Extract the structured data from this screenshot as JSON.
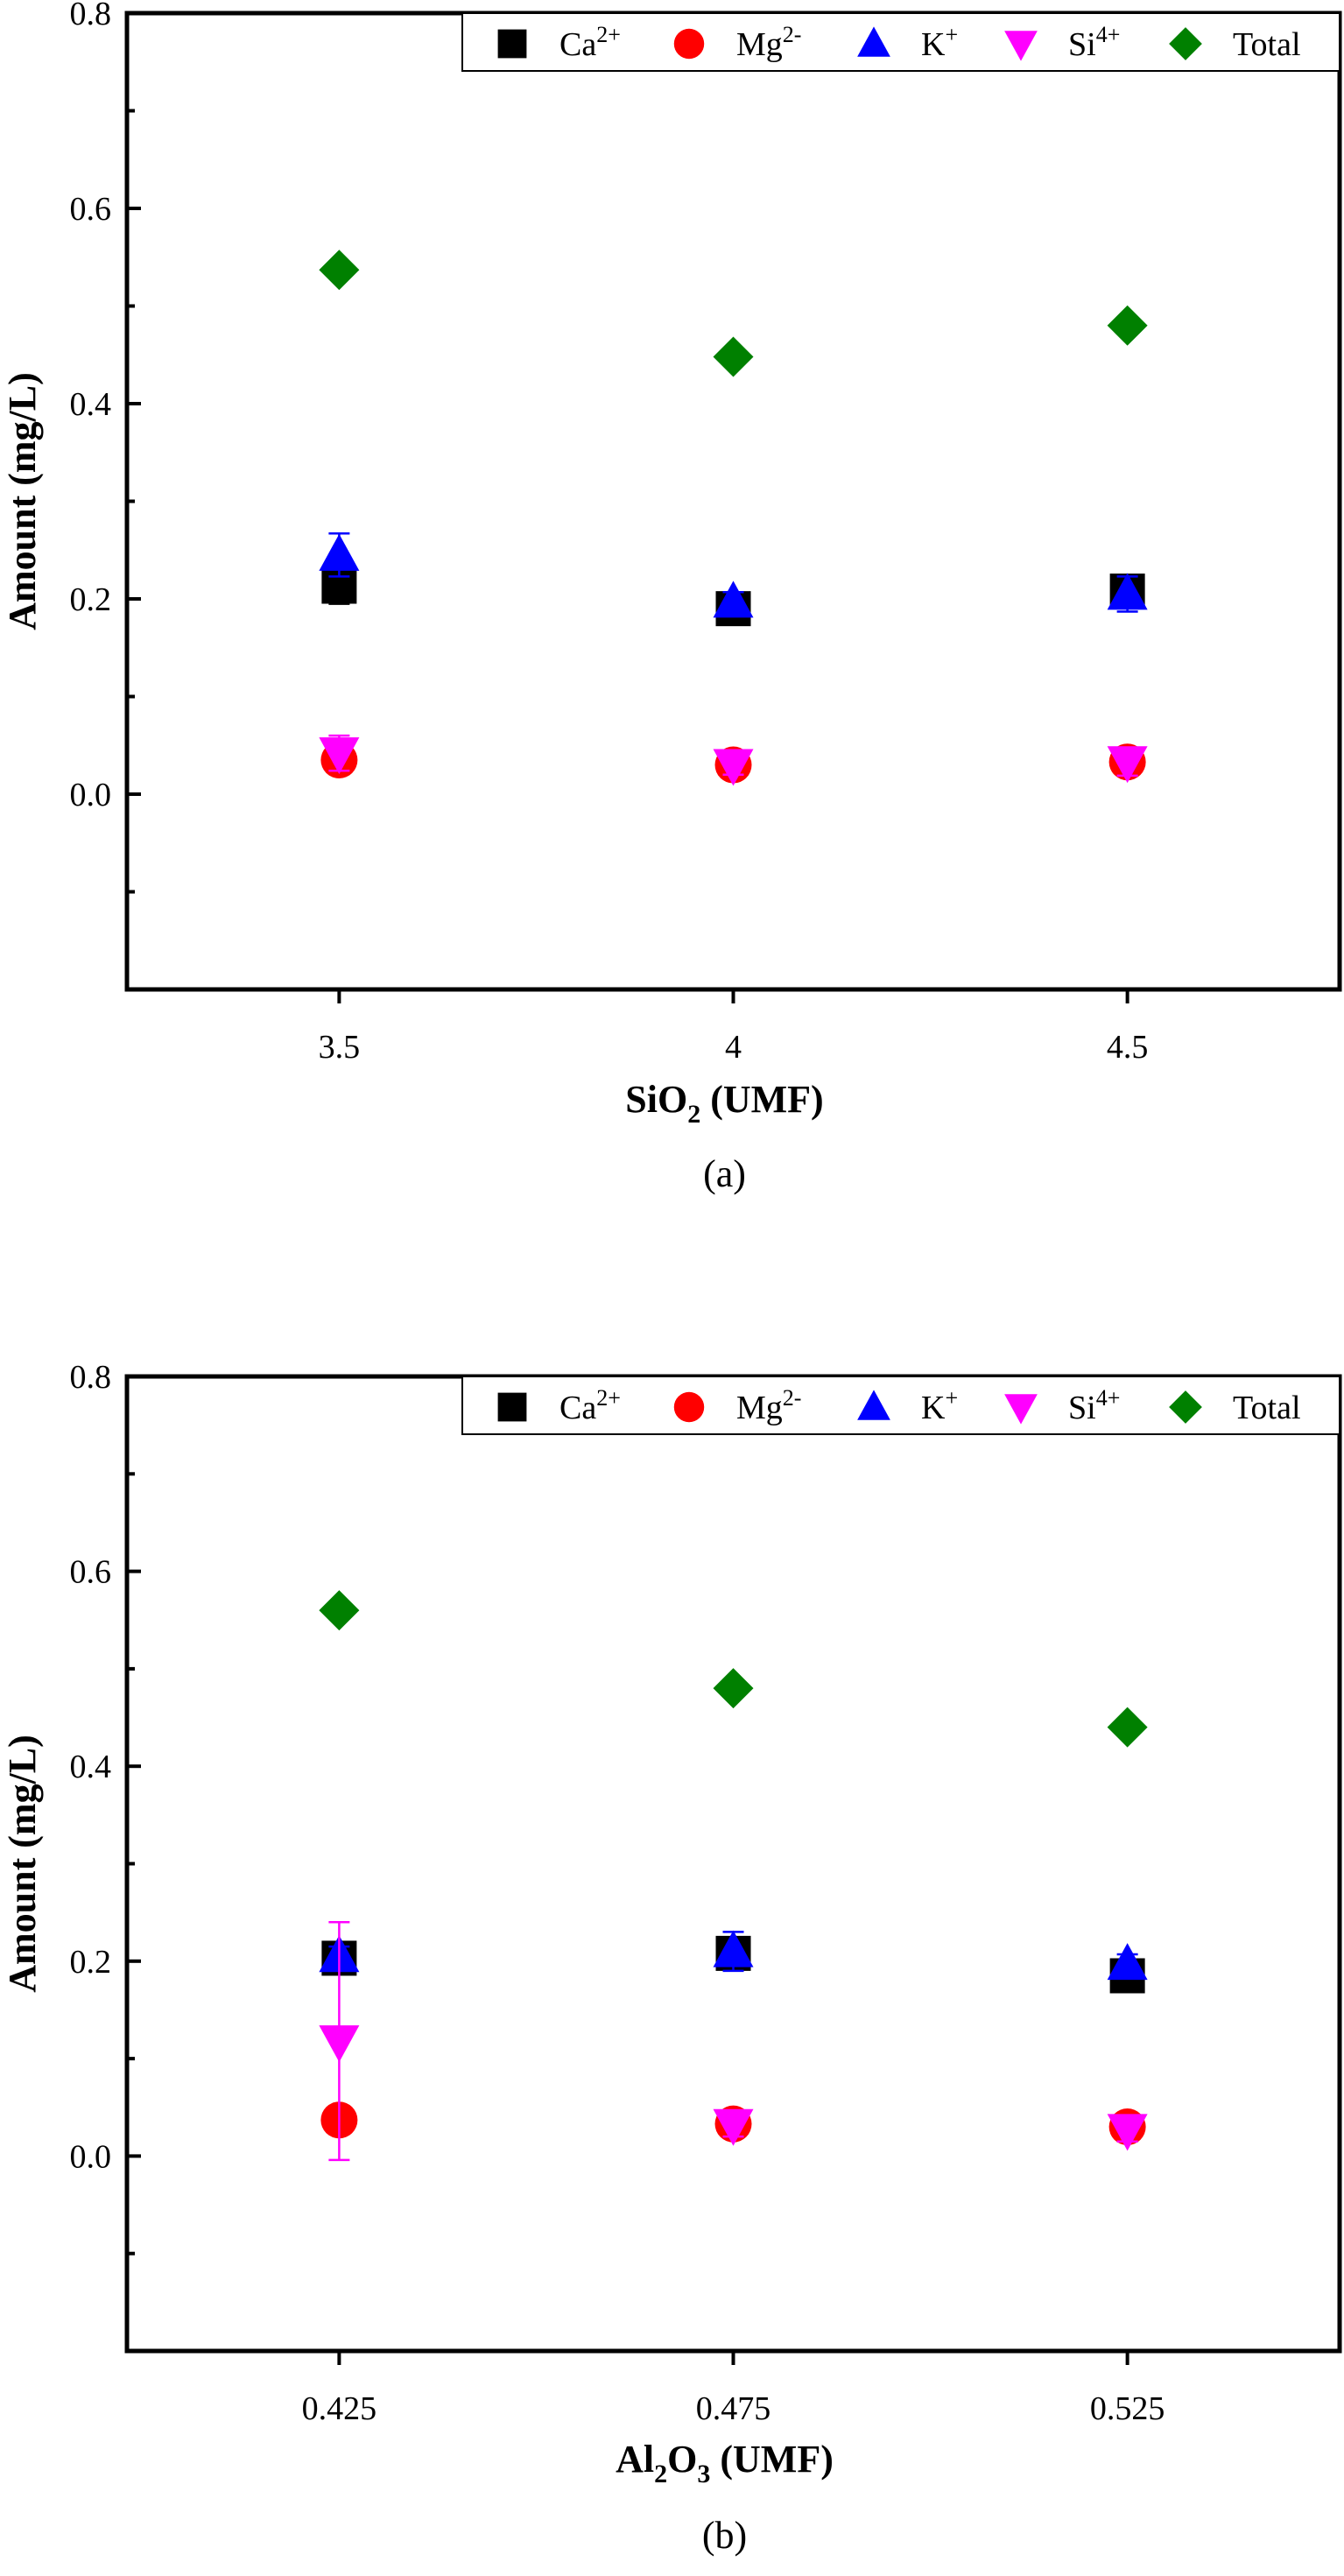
{
  "chart_data": [
    {
      "type": "scatter",
      "panel_label": "(a)",
      "xlabel_main": "SiO",
      "xlabel_sub": "2",
      "xlabel_rest": " (UMF)",
      "ylabel": "Amount (mg/L)",
      "categories": [
        "3.5",
        "4",
        "4.5"
      ],
      "ylim": [
        -0.2,
        0.8
      ],
      "yticks": [
        "0.0",
        "0.2",
        "0.4",
        "0.6",
        "0.8"
      ],
      "ytick_values": [
        0.0,
        0.2,
        0.4,
        0.6,
        0.8
      ],
      "grid": false,
      "legend_position": "top-right",
      "series": [
        {
          "name": "Ca",
          "sup": "2+",
          "marker": "square",
          "color": "#000000",
          "values": [
            0.213,
            0.19,
            0.208
          ],
          "errors": [
            0.018,
            0.008,
            0.012
          ]
        },
        {
          "name": "Mg",
          "sup": "2-",
          "marker": "circle",
          "color": "#ff0000",
          "values": [
            0.035,
            0.03,
            0.033
          ],
          "errors": [
            0.006,
            0.005,
            0.006
          ]
        },
        {
          "name": "K",
          "sup": "+",
          "marker": "triangle-up",
          "color": "#0000ff",
          "values": [
            0.245,
            0.197,
            0.205
          ],
          "errors": [
            0.022,
            0.01,
            0.018
          ]
        },
        {
          "name": "Si",
          "sup": "4+",
          "marker": "triangle-down",
          "color": "#ff00ff",
          "values": [
            0.042,
            0.03,
            0.033
          ],
          "errors": [
            0.018,
            0.01,
            0.014
          ]
        },
        {
          "name": "Total",
          "sup": "",
          "marker": "diamond",
          "color": "#008000",
          "values": [
            0.537,
            0.448,
            0.48
          ],
          "errors": [
            0,
            0,
            0
          ]
        }
      ]
    },
    {
      "type": "scatter",
      "panel_label": "(b)",
      "xlabel_main": "Al",
      "xlabel_sub": "2",
      "xlabel_main2": "O",
      "xlabel_sub2": "3",
      "xlabel_rest": " (UMF)",
      "ylabel": "Amount (mg/L)",
      "categories": [
        "0.425",
        "0.475",
        "0.525"
      ],
      "ylim": [
        -0.2,
        0.8
      ],
      "yticks": [
        "0.0",
        "0.2",
        "0.4",
        "0.6",
        "0.8"
      ],
      "ytick_values": [
        0.0,
        0.2,
        0.4,
        0.6,
        0.8
      ],
      "grid": false,
      "legend_position": "top-right",
      "series": [
        {
          "name": "Ca",
          "sup": "2+",
          "marker": "square",
          "color": "#000000",
          "values": [
            0.203,
            0.208,
            0.185
          ],
          "errors": [
            0.01,
            0.01,
            0.008
          ]
        },
        {
          "name": "Mg",
          "sup": "2-",
          "marker": "circle",
          "color": "#ff0000",
          "values": [
            0.037,
            0.033,
            0.03
          ],
          "errors": [
            0.005,
            0.005,
            0.005
          ]
        },
        {
          "name": "K",
          "sup": "+",
          "marker": "triangle-up",
          "color": "#0000ff",
          "values": [
            0.205,
            0.21,
            0.197
          ],
          "errors": [
            0.01,
            0.02,
            0.01
          ]
        },
        {
          "name": "Si",
          "sup": "4+",
          "marker": "triangle-down",
          "color": "#ff00ff",
          "values": [
            0.118,
            0.032,
            0.027
          ],
          "errors": [
            0.122,
            0.012,
            0.012
          ]
        },
        {
          "name": "Total",
          "sup": "",
          "marker": "diamond",
          "color": "#008000",
          "values": [
            0.56,
            0.48,
            0.44
          ],
          "errors": [
            0,
            0,
            0
          ]
        }
      ]
    }
  ]
}
